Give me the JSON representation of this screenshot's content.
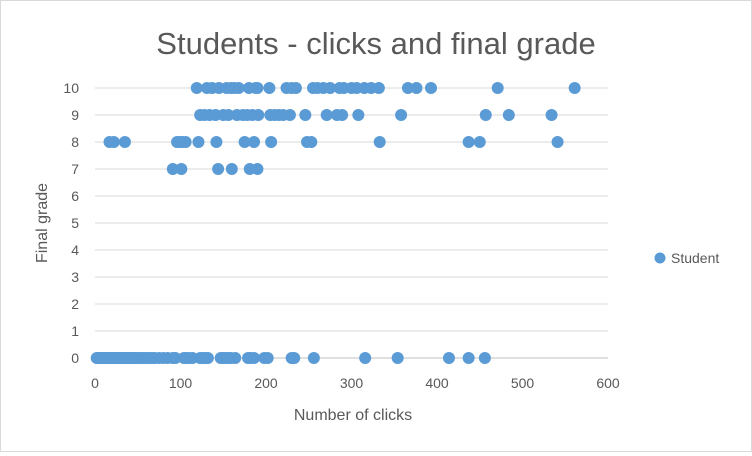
{
  "chart_data": {
    "type": "scatter",
    "title": "Students - clicks and final grade",
    "xlabel": "Number of clicks",
    "ylabel": "Final grade",
    "xlim": [
      0,
      600
    ],
    "ylim": [
      0,
      10
    ],
    "x_ticks": [
      "0",
      "100",
      "200",
      "300",
      "400",
      "500",
      "600"
    ],
    "y_ticks": [
      "0",
      "1",
      "2",
      "3",
      "4",
      "5",
      "6",
      "7",
      "8",
      "9",
      "10"
    ],
    "grid": "horizontal",
    "legend_position": "right",
    "marker_color": "#5b9bd5",
    "series": [
      {
        "name": "Student",
        "points": [
          [
            2,
            0
          ],
          [
            4,
            0
          ],
          [
            6,
            0
          ],
          [
            8,
            0
          ],
          [
            10,
            0
          ],
          [
            12,
            0
          ],
          [
            14,
            0
          ],
          [
            16,
            0
          ],
          [
            18,
            0
          ],
          [
            20,
            0
          ],
          [
            22,
            0
          ],
          [
            24,
            0
          ],
          [
            26,
            0
          ],
          [
            28,
            0
          ],
          [
            30,
            0
          ],
          [
            32,
            0
          ],
          [
            34,
            0
          ],
          [
            36,
            0
          ],
          [
            38,
            0
          ],
          [
            40,
            0
          ],
          [
            42,
            0
          ],
          [
            44,
            0
          ],
          [
            46,
            0
          ],
          [
            48,
            0
          ],
          [
            50,
            0
          ],
          [
            52,
            0
          ],
          [
            55,
            0
          ],
          [
            58,
            0
          ],
          [
            61,
            0
          ],
          [
            64,
            0
          ],
          [
            67,
            0
          ],
          [
            70,
            0
          ],
          [
            75,
            0
          ],
          [
            80,
            0
          ],
          [
            85,
            0
          ],
          [
            91,
            0
          ],
          [
            94,
            0
          ],
          [
            104,
            0
          ],
          [
            107,
            0
          ],
          [
            110,
            0
          ],
          [
            114,
            0
          ],
          [
            123,
            0
          ],
          [
            126,
            0
          ],
          [
            129,
            0
          ],
          [
            132,
            0
          ],
          [
            147,
            0
          ],
          [
            150,
            0
          ],
          [
            153,
            0
          ],
          [
            156,
            0
          ],
          [
            159,
            0
          ],
          [
            164,
            0
          ],
          [
            179,
            0
          ],
          [
            182,
            0
          ],
          [
            186,
            0
          ],
          [
            198,
            0
          ],
          [
            202,
            0
          ],
          [
            230,
            0
          ],
          [
            233,
            0
          ],
          [
            256,
            0
          ],
          [
            316,
            0
          ],
          [
            354,
            0
          ],
          [
            414,
            0
          ],
          [
            437,
            0
          ],
          [
            456,
            0
          ],
          [
            17,
            8
          ],
          [
            22,
            8
          ],
          [
            35,
            8
          ],
          [
            91,
            7
          ],
          [
            101,
            7
          ],
          [
            144,
            7
          ],
          [
            160,
            7
          ],
          [
            181,
            7
          ],
          [
            190,
            7
          ],
          [
            96,
            8
          ],
          [
            99,
            8
          ],
          [
            102,
            8
          ],
          [
            106,
            8
          ],
          [
            121,
            8
          ],
          [
            142,
            8
          ],
          [
            175,
            8
          ],
          [
            186,
            8
          ],
          [
            206,
            8
          ],
          [
            248,
            8
          ],
          [
            253,
            8
          ],
          [
            333,
            8
          ],
          [
            437,
            8
          ],
          [
            450,
            8
          ],
          [
            541,
            8
          ],
          [
            123,
            9
          ],
          [
            128,
            9
          ],
          [
            134,
            9
          ],
          [
            141,
            9
          ],
          [
            150,
            9
          ],
          [
            156,
            9
          ],
          [
            166,
            9
          ],
          [
            173,
            9
          ],
          [
            178,
            9
          ],
          [
            184,
            9
          ],
          [
            191,
            9
          ],
          [
            205,
            9
          ],
          [
            210,
            9
          ],
          [
            215,
            9
          ],
          [
            220,
            9
          ],
          [
            228,
            9
          ],
          [
            246,
            9
          ],
          [
            271,
            9
          ],
          [
            283,
            9
          ],
          [
            289,
            9
          ],
          [
            308,
            9
          ],
          [
            358,
            9
          ],
          [
            457,
            9
          ],
          [
            484,
            9
          ],
          [
            534,
            9
          ],
          [
            119,
            10
          ],
          [
            131,
            10
          ],
          [
            137,
            10
          ],
          [
            145,
            10
          ],
          [
            154,
            10
          ],
          [
            159,
            10
          ],
          [
            163,
            10
          ],
          [
            168,
            10
          ],
          [
            180,
            10
          ],
          [
            188,
            10
          ],
          [
            190,
            10
          ],
          [
            204,
            10
          ],
          [
            224,
            10
          ],
          [
            230,
            10
          ],
          [
            235,
            10
          ],
          [
            255,
            10
          ],
          [
            260,
            10
          ],
          [
            267,
            10
          ],
          [
            275,
            10
          ],
          [
            286,
            10
          ],
          [
            291,
            10
          ],
          [
            300,
            10
          ],
          [
            306,
            10
          ],
          [
            315,
            10
          ],
          [
            323,
            10
          ],
          [
            332,
            10
          ],
          [
            366,
            10
          ],
          [
            376,
            10
          ],
          [
            393,
            10
          ],
          [
            471,
            10
          ],
          [
            561,
            10
          ]
        ]
      }
    ]
  }
}
